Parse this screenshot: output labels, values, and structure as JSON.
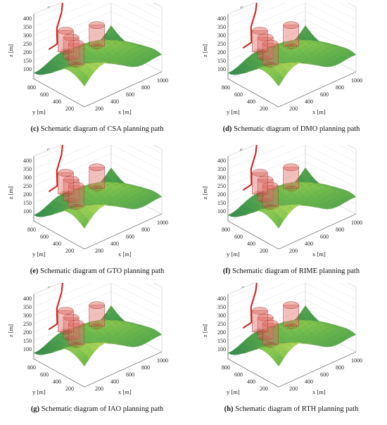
{
  "figures": [
    {
      "title": "Schematic diagram of CSA planning path",
      "caption_letter": "(c)",
      "caption_text": " Schematic diagram of CSA planning path",
      "chart_data": {
        "type": "surface3d",
        "title": "Schematic diagram of CSA planning path",
        "xlabel": "x [m]",
        "ylabel": "y [m]",
        "zlabel": "z [m]",
        "x_ticks": [
          "200",
          "400",
          "600",
          "800",
          "1000"
        ],
        "y_ticks": [
          "200",
          "400",
          "600",
          "800"
        ],
        "z_ticks": [
          "100",
          "150",
          "200",
          "250",
          "300",
          "350",
          "400"
        ]
      }
    },
    {
      "title": "Schematic diagram of DMO planning path",
      "caption_letter": "(d)",
      "caption_text": " Schematic diagram of DMO planning path",
      "chart_data": {
        "type": "surface3d",
        "title": "Schematic diagram of DMO planning path",
        "xlabel": "x [m]",
        "ylabel": "y [m]",
        "zlabel": "z [m]",
        "x_ticks": [
          "200",
          "400",
          "600",
          "800",
          "1000"
        ],
        "y_ticks": [
          "200",
          "400",
          "600",
          "800"
        ],
        "z_ticks": [
          "100",
          "150",
          "200",
          "250",
          "300",
          "350",
          "400"
        ]
      }
    },
    {
      "title": "Schematic diagram of GTO planning path",
      "caption_letter": "(e)",
      "caption_text": " Schematic diagram of GTO planning path",
      "chart_data": {
        "type": "surface3d",
        "title": "Schematic diagram of GTO planning path",
        "xlabel": "x [m]",
        "ylabel": "y [m]",
        "zlabel": "z [m]",
        "x_ticks": [
          "200",
          "400",
          "600",
          "800",
          "1000"
        ],
        "y_ticks": [
          "200",
          "400",
          "600",
          "800"
        ],
        "z_ticks": [
          "100",
          "150",
          "200",
          "250",
          "300",
          "350",
          "400"
        ]
      }
    },
    {
      "title": "Schematic diagram of RIME planning path",
      "caption_letter": "(f)",
      "caption_text": " Schematic diagram of RIME planning path",
      "chart_data": {
        "type": "surface3d",
        "title": "Schematic diagram of RIME planning path",
        "xlabel": "x [m]",
        "ylabel": "y [m]",
        "zlabel": "z [m]",
        "x_ticks": [
          "200",
          "400",
          "600",
          "800",
          "1000"
        ],
        "y_ticks": [
          "200",
          "400",
          "600",
          "800"
        ],
        "z_ticks": [
          "100",
          "150",
          "200",
          "250",
          "300",
          "350",
          "400"
        ]
      }
    },
    {
      "title": "Schematic diagram of IAO planning path",
      "caption_letter": "(g)",
      "caption_text": " Schematic diagram of IAO planning path",
      "chart_data": {
        "type": "surface3d",
        "title": "Schematic diagram of IAO planning path",
        "xlabel": "x [m]",
        "ylabel": "y [m]",
        "zlabel": "z [m]",
        "x_ticks": [
          "200",
          "400",
          "600",
          "800",
          "1000"
        ],
        "y_ticks": [
          "200",
          "400",
          "600",
          "800"
        ],
        "z_ticks": [
          "100",
          "150",
          "200",
          "250",
          "300",
          "350",
          "400"
        ]
      }
    },
    {
      "title": "Schematic diagram of RTH planning path",
      "caption_letter": "(h)",
      "caption_text": " Schematic diagram of RTH planning path",
      "chart_data": {
        "type": "surface3d",
        "title": "Schematic diagram of RTH planning path",
        "xlabel": "x [m]",
        "ylabel": "y [m]",
        "zlabel": "z [m]",
        "x_ticks": [
          "200",
          "400",
          "600",
          "800",
          "1000"
        ],
        "y_ticks": [
          "200",
          "400",
          "600",
          "800"
        ],
        "z_ticks": [
          "100",
          "150",
          "200",
          "250",
          "300",
          "350",
          "400"
        ]
      }
    }
  ],
  "colors": {
    "terrain_light": "#d6ee5a",
    "terrain_mid": "#6ab84a",
    "terrain_dark": "#2f8a4a",
    "path": "#d31a1a",
    "obstacle": "#e0706a"
  }
}
